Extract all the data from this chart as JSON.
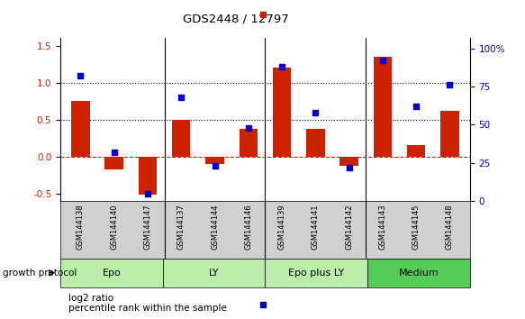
{
  "title": "GDS2448 / 12797",
  "samples": [
    "GSM144138",
    "GSM144140",
    "GSM144147",
    "GSM144137",
    "GSM144144",
    "GSM144146",
    "GSM144139",
    "GSM144141",
    "GSM144142",
    "GSM144143",
    "GSM144145",
    "GSM144148"
  ],
  "log2_ratio": [
    0.75,
    -0.17,
    -0.52,
    0.5,
    -0.1,
    0.37,
    1.2,
    0.37,
    -0.12,
    1.35,
    0.15,
    0.62
  ],
  "percentile_rank": [
    82,
    32,
    5,
    68,
    23,
    48,
    88,
    58,
    22,
    92,
    62,
    76
  ],
  "groups": [
    {
      "label": "Epo",
      "start": 0,
      "end": 3,
      "color": "#bbeeaa"
    },
    {
      "label": "LY",
      "start": 3,
      "end": 6,
      "color": "#bbeeaa"
    },
    {
      "label": "Epo plus LY",
      "start": 6,
      "end": 9,
      "color": "#bbeeaa"
    },
    {
      "label": "Medium",
      "start": 9,
      "end": 12,
      "color": "#55cc55"
    }
  ],
  "bar_color": "#cc2200",
  "dot_color": "#0000cc",
  "ylim_left": [
    -0.6,
    1.6
  ],
  "ylim_right": [
    0,
    106.67
  ],
  "yticks_left": [
    -0.5,
    0.0,
    0.5,
    1.0,
    1.5
  ],
  "yticks_right": [
    0,
    25,
    50,
    75,
    100
  ],
  "ytick_labels_right": [
    "0",
    "25",
    "50",
    "75",
    "100%"
  ],
  "hlines": [
    0.0,
    0.5,
    1.0
  ],
  "hline_styles": [
    "dashed",
    "dotted",
    "dotted"
  ],
  "hline_colors": [
    "#cc2200",
    "#000000",
    "#000000"
  ],
  "group_boundaries": [
    3,
    6,
    9
  ],
  "growth_protocol_text": "growth protocol",
  "legend_log2": "log2 ratio",
  "legend_pct": "percentile rank within the sample",
  "sample_label_bg": "#d0d0d0",
  "bar_width": 0.55
}
